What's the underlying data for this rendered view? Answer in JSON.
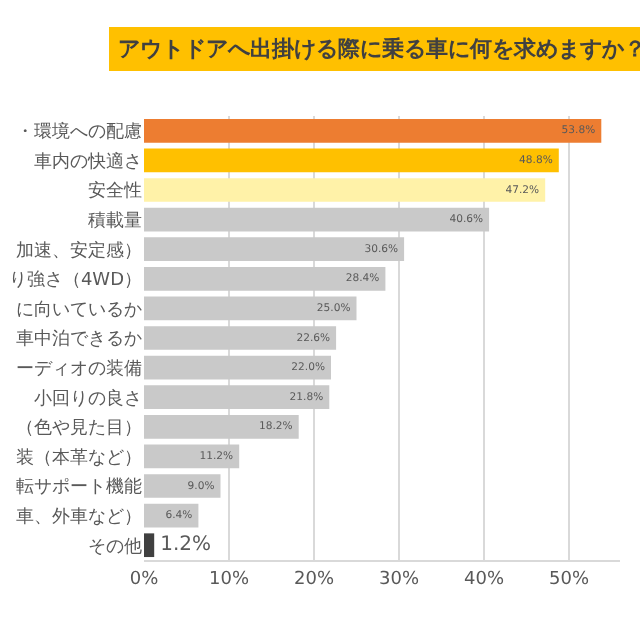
{
  "chart_data": {
    "type": "bar",
    "orientation": "horizontal",
    "title": "アウトドアへ出掛ける際に乗る車に何を求めますか？",
    "categories": [
      "・環境への配慮",
      "車内の快適さ",
      "安全性",
      "積載量",
      "加速、安定感）",
      "り強さ（4WD）",
      "に向いているか",
      "車中泊できるか",
      "ーディオの装備",
      "小回りの良さ",
      "（色や見た目）",
      "装（本革など）",
      "転サポート機能",
      "車、外車など）",
      "その他"
    ],
    "values": [
      53.8,
      48.8,
      47.2,
      40.6,
      30.6,
      28.4,
      25.0,
      22.6,
      22.0,
      21.8,
      18.2,
      11.2,
      9.0,
      6.4,
      1.2
    ],
    "value_labels": [
      "53.8%",
      "48.8%",
      "47.2%",
      "40.6%",
      "30.6%",
      "28.4%",
      "25.0%",
      "22.6%",
      "22.0%",
      "21.8%",
      "18.2%",
      "11.2%",
      "9.0%",
      "6.4%",
      "1.2%"
    ],
    "colors": [
      "#ed7d31",
      "#ffc000",
      "#fff2a8",
      "#c9c9c9",
      "#c9c9c9",
      "#c9c9c9",
      "#c9c9c9",
      "#c9c9c9",
      "#c9c9c9",
      "#c9c9c9",
      "#c9c9c9",
      "#c9c9c9",
      "#c9c9c9",
      "#c9c9c9",
      "#404040"
    ],
    "xlim": [
      0,
      56
    ],
    "xticks": [
      {
        "value": 0,
        "label": "0%"
      },
      {
        "value": 10,
        "label": "10%"
      },
      {
        "value": 20,
        "label": "20%"
      },
      {
        "value": 30,
        "label": "30%"
      },
      {
        "value": 40,
        "label": "40%"
      },
      {
        "value": 50,
        "label": "50%"
      }
    ],
    "grid": "x"
  }
}
